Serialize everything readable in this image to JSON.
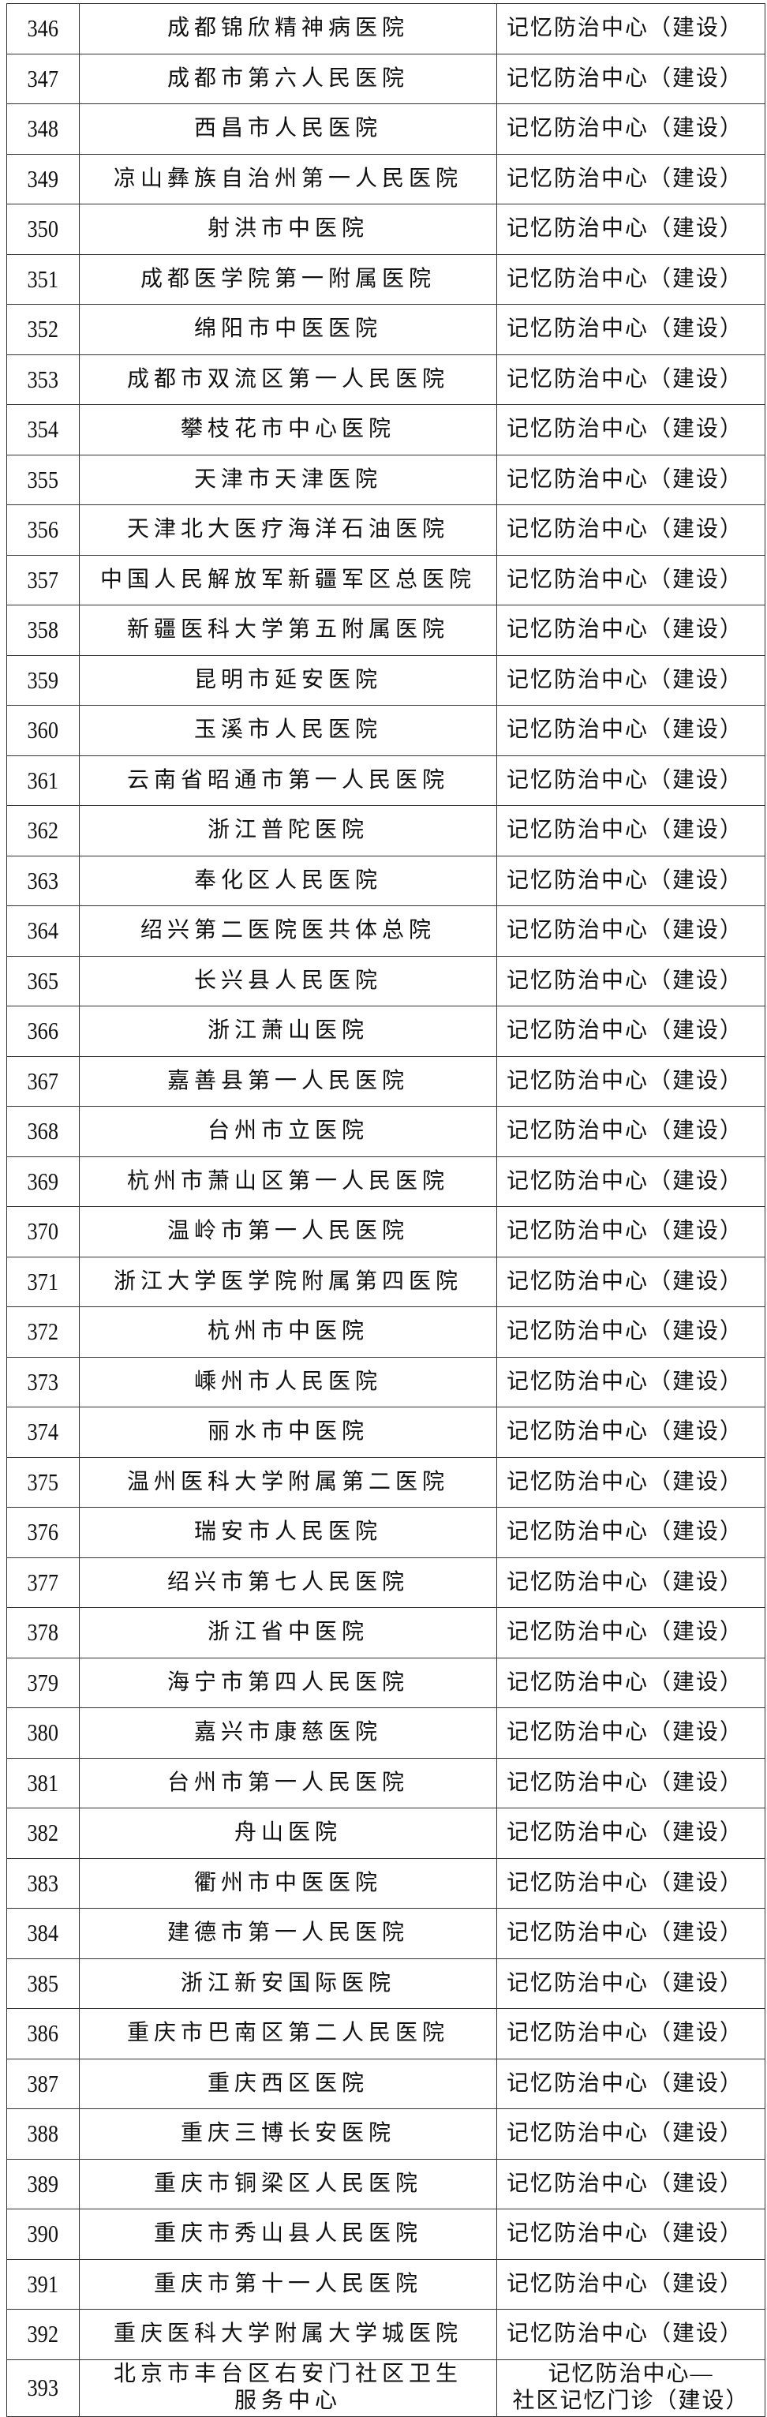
{
  "rows": [
    {
      "no": "346",
      "name": "成都锦欣精神病医院",
      "status": "记忆防治中心（建设）"
    },
    {
      "no": "347",
      "name": "成都市第六人民医院",
      "status": "记忆防治中心（建设）"
    },
    {
      "no": "348",
      "name": "西昌市人民医院",
      "status": "记忆防治中心（建设）"
    },
    {
      "no": "349",
      "name": "凉山彝族自治州第一人民医院",
      "status": "记忆防治中心（建设）"
    },
    {
      "no": "350",
      "name": "射洪市中医院",
      "status": "记忆防治中心（建设）"
    },
    {
      "no": "351",
      "name": "成都医学院第一附属医院",
      "status": "记忆防治中心（建设）"
    },
    {
      "no": "352",
      "name": "绵阳市中医医院",
      "status": "记忆防治中心（建设）"
    },
    {
      "no": "353",
      "name": "成都市双流区第一人民医院",
      "status": "记忆防治中心（建设）"
    },
    {
      "no": "354",
      "name": "攀枝花市中心医院",
      "status": "记忆防治中心（建设）"
    },
    {
      "no": "355",
      "name": "天津市天津医院",
      "status": "记忆防治中心（建设）"
    },
    {
      "no": "356",
      "name": "天津北大医疗海洋石油医院",
      "status": "记忆防治中心（建设）"
    },
    {
      "no": "357",
      "name": "中国人民解放军新疆军区总医院",
      "status": "记忆防治中心（建设）"
    },
    {
      "no": "358",
      "name": "新疆医科大学第五附属医院",
      "status": "记忆防治中心（建设）"
    },
    {
      "no": "359",
      "name": "昆明市延安医院",
      "status": "记忆防治中心（建设）"
    },
    {
      "no": "360",
      "name": "玉溪市人民医院",
      "status": "记忆防治中心（建设）"
    },
    {
      "no": "361",
      "name": "云南省昭通市第一人民医院",
      "status": "记忆防治中心（建设）"
    },
    {
      "no": "362",
      "name": "浙江普陀医院",
      "status": "记忆防治中心（建设）"
    },
    {
      "no": "363",
      "name": "奉化区人民医院",
      "status": "记忆防治中心（建设）"
    },
    {
      "no": "364",
      "name": "绍兴第二医院医共体总院",
      "status": "记忆防治中心（建设）"
    },
    {
      "no": "365",
      "name": "长兴县人民医院",
      "status": "记忆防治中心（建设）"
    },
    {
      "no": "366",
      "name": "浙江萧山医院",
      "status": "记忆防治中心（建设）"
    },
    {
      "no": "367",
      "name": "嘉善县第一人民医院",
      "status": "记忆防治中心（建设）"
    },
    {
      "no": "368",
      "name": "台州市立医院",
      "status": "记忆防治中心（建设）"
    },
    {
      "no": "369",
      "name": "杭州市萧山区第一人民医院",
      "status": "记忆防治中心（建设）"
    },
    {
      "no": "370",
      "name": "温岭市第一人民医院",
      "status": "记忆防治中心（建设）"
    },
    {
      "no": "371",
      "name": "浙江大学医学院附属第四医院",
      "status": "记忆防治中心（建设）"
    },
    {
      "no": "372",
      "name": "杭州市中医院",
      "status": "记忆防治中心（建设）"
    },
    {
      "no": "373",
      "name": "嵊州市人民医院",
      "status": "记忆防治中心（建设）"
    },
    {
      "no": "374",
      "name": "丽水市中医院",
      "status": "记忆防治中心（建设）"
    },
    {
      "no": "375",
      "name": "温州医科大学附属第二医院",
      "status": "记忆防治中心（建设）"
    },
    {
      "no": "376",
      "name": "瑞安市人民医院",
      "status": "记忆防治中心（建设）"
    },
    {
      "no": "377",
      "name": "绍兴市第七人民医院",
      "status": "记忆防治中心（建设）"
    },
    {
      "no": "378",
      "name": "浙江省中医院",
      "status": "记忆防治中心（建设）"
    },
    {
      "no": "379",
      "name": "海宁市第四人民医院",
      "status": "记忆防治中心（建设）"
    },
    {
      "no": "380",
      "name": "嘉兴市康慈医院",
      "status": "记忆防治中心（建设）"
    },
    {
      "no": "381",
      "name": "台州市第一人民医院",
      "status": "记忆防治中心（建设）"
    },
    {
      "no": "382",
      "name": "舟山医院",
      "status": "记忆防治中心（建设）"
    },
    {
      "no": "383",
      "name": "衢州市中医医院",
      "status": "记忆防治中心（建设）"
    },
    {
      "no": "384",
      "name": "建德市第一人民医院",
      "status": "记忆防治中心（建设）"
    },
    {
      "no": "385",
      "name": "浙江新安国际医院",
      "status": "记忆防治中心（建设）"
    },
    {
      "no": "386",
      "name": "重庆市巴南区第二人民医院",
      "status": "记忆防治中心（建设）"
    },
    {
      "no": "387",
      "name": "重庆西区医院",
      "status": "记忆防治中心（建设）"
    },
    {
      "no": "388",
      "name": "重庆三博长安医院",
      "status": "记忆防治中心（建设）"
    },
    {
      "no": "389",
      "name": "重庆市铜梁区人民医院",
      "status": "记忆防治中心（建设）"
    },
    {
      "no": "390",
      "name": "重庆市秀山县人民医院",
      "status": "记忆防治中心（建设）"
    },
    {
      "no": "391",
      "name": "重庆市第十一人民医院",
      "status": "记忆防治中心（建设）"
    },
    {
      "no": "392",
      "name": "重庆医科大学附属大学城医院",
      "status": "记忆防治中心（建设）"
    },
    {
      "no": "393",
      "name": "北京市丰台区右安门社区卫生服务中心",
      "status": "记忆防治中心—社区记忆门诊（建设）",
      "name_lines": [
        "北京市丰台区右安门社区卫生",
        "服务中心"
      ],
      "status_lines": [
        "记忆防治中心—",
        "社区记忆门诊（建设）"
      ]
    }
  ]
}
